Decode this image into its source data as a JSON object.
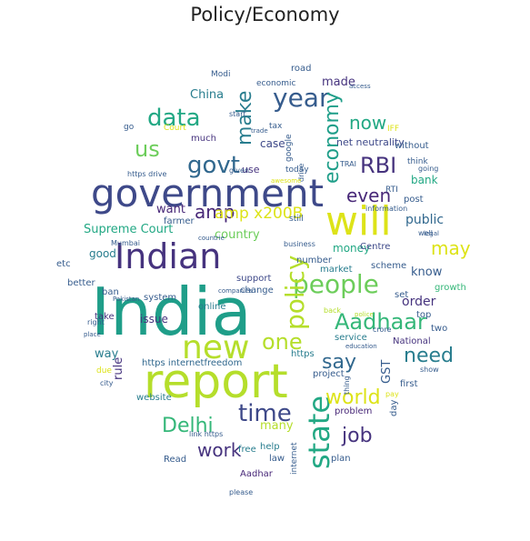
{
  "title": "Policy/Economy",
  "palette": {
    "dark_purple": "#482878",
    "purple": "#46337e",
    "indigo": "#3e4989",
    "slate_blue": "#365c8d",
    "steel_blue": "#31688e",
    "teal_blue": "#287d8e",
    "teal": "#1f9e89",
    "sea_green": "#22a884",
    "green": "#35b779",
    "light_green": "#6ccd5a",
    "yellow_green": "#b5de2b",
    "yellow": "#dde318"
  },
  "words": [
    {
      "text": "India",
      "color": "#1f9e89"
    },
    {
      "text": "report",
      "color": "#b5de2b"
    },
    {
      "text": "government",
      "color": "#3e4989"
    },
    {
      "text": "Indian",
      "color": "#46337e"
    },
    {
      "text": "will",
      "color": "#dde318"
    },
    {
      "text": "people",
      "color": "#6ccd5a"
    },
    {
      "text": "new",
      "color": "#b5de2b"
    },
    {
      "text": "state",
      "color": "#22a884"
    },
    {
      "text": "policy",
      "color": "#b5de2b"
    },
    {
      "text": "year",
      "color": "#365c8d"
    },
    {
      "text": "govt",
      "color": "#31688e"
    },
    {
      "text": "data",
      "color": "#22a884"
    },
    {
      "text": "time",
      "color": "#3e4989"
    },
    {
      "text": "Delhi",
      "color": "#35b779"
    },
    {
      "text": "Aadhaar",
      "color": "#35b779"
    },
    {
      "text": "say",
      "color": "#31688e"
    },
    {
      "text": "need",
      "color": "#287d8e"
    },
    {
      "text": "world",
      "color": "#dde318"
    },
    {
      "text": "job",
      "color": "#46337e"
    },
    {
      "text": "RBI",
      "color": "#46337e"
    },
    {
      "text": "us",
      "color": "#6ccd5a"
    },
    {
      "text": "make",
      "color": "#287d8e"
    },
    {
      "text": "economy",
      "color": "#1f9e89"
    },
    {
      "text": "now",
      "color": "#22a884"
    },
    {
      "text": "even",
      "color": "#482878"
    },
    {
      "text": "may",
      "color": "#dde318"
    },
    {
      "text": "one",
      "color": "#b5de2b"
    },
    {
      "text": "work",
      "color": "#46337e"
    },
    {
      "text": "amp",
      "color": "#482878"
    },
    {
      "text": "amp x200B",
      "color": "#dde318"
    },
    {
      "text": "Supreme Court",
      "color": "#22a884"
    },
    {
      "text": "country",
      "color": "#6ccd5a"
    },
    {
      "text": "public",
      "color": "#31688e"
    },
    {
      "text": "want",
      "color": "#482878"
    },
    {
      "text": "made",
      "color": "#46337e"
    },
    {
      "text": "China",
      "color": "#287d8e"
    },
    {
      "text": "case",
      "color": "#3e4989"
    },
    {
      "text": "bank",
      "color": "#22a884"
    },
    {
      "text": "know",
      "color": "#365c8d"
    },
    {
      "text": "order",
      "color": "#46337e"
    },
    {
      "text": "money",
      "color": "#22a884"
    },
    {
      "text": "good",
      "color": "#287d8e"
    },
    {
      "text": "way",
      "color": "#287d8e"
    },
    {
      "text": "issue",
      "color": "#46337e"
    },
    {
      "text": "rule",
      "color": "#46337e"
    },
    {
      "text": "many",
      "color": "#b5de2b"
    },
    {
      "text": "GST",
      "color": "#365c8d"
    },
    {
      "text": "net neutrality",
      "color": "#3e4989"
    },
    {
      "text": "use",
      "color": "#46337e"
    },
    {
      "text": "much",
      "color": "#46337e"
    },
    {
      "text": "take",
      "color": "#46337e"
    },
    {
      "text": "ban",
      "color": "#365c8d"
    },
    {
      "text": "https internetfreedom",
      "color": "#31688e"
    },
    {
      "text": "problem",
      "color": "#482878"
    },
    {
      "text": "Centre",
      "color": "#3e4989"
    },
    {
      "text": "support",
      "color": "#3e4989"
    },
    {
      "text": "online",
      "color": "#287d8e"
    },
    {
      "text": "system",
      "color": "#365c8d"
    },
    {
      "text": "market",
      "color": "#287d8e"
    },
    {
      "text": "scheme",
      "color": "#365c8d"
    },
    {
      "text": "number",
      "color": "#365c8d"
    },
    {
      "text": "change",
      "color": "#365c8d"
    },
    {
      "text": "set",
      "color": "#365c8d"
    },
    {
      "text": "top",
      "color": "#365c8d"
    },
    {
      "text": "growth",
      "color": "#35b779"
    },
    {
      "text": "two",
      "color": "#365c8d"
    },
    {
      "text": "https",
      "color": "#287d8e"
    },
    {
      "text": "project",
      "color": "#365c8d"
    },
    {
      "text": "service",
      "color": "#287d8e"
    },
    {
      "text": "day",
      "color": "#365c8d"
    },
    {
      "text": "first",
      "color": "#365c8d"
    },
    {
      "text": "National",
      "color": "#46337e"
    },
    {
      "text": "website",
      "color": "#287d8e"
    },
    {
      "text": "free",
      "color": "#287d8e"
    },
    {
      "text": "Read",
      "color": "#365c8d"
    },
    {
      "text": "help",
      "color": "#287d8e"
    },
    {
      "text": "law",
      "color": "#365c8d"
    },
    {
      "text": "plan",
      "color": "#365c8d"
    },
    {
      "text": "Aadhar",
      "color": "#482878"
    },
    {
      "text": "internet",
      "color": "#365c8d"
    },
    {
      "text": "farmer",
      "color": "#365c8d"
    },
    {
      "text": "better",
      "color": "#365c8d"
    },
    {
      "text": "etc",
      "color": "#365c8d"
    },
    {
      "text": "post",
      "color": "#365c8d"
    },
    {
      "text": "without",
      "color": "#365c8d"
    },
    {
      "text": "think",
      "color": "#365c8d"
    },
    {
      "text": "going",
      "color": "#365c8d"
    },
    {
      "text": "well",
      "color": "#365c8d"
    },
    {
      "text": "RTI",
      "color": "#365c8d"
    },
    {
      "text": "information",
      "color": "#365c8d"
    },
    {
      "text": "Modi",
      "color": "#365c8d"
    },
    {
      "text": "road",
      "color": "#365c8d"
    },
    {
      "text": "economic",
      "color": "#365c8d"
    },
    {
      "text": "tax",
      "color": "#365c8d"
    },
    {
      "text": "google",
      "color": "#365c8d"
    },
    {
      "text": "drive",
      "color": "#365c8d"
    },
    {
      "text": "today",
      "color": "#365c8d"
    },
    {
      "text": "still",
      "color": "#365c8d"
    },
    {
      "text": "business",
      "color": "#365c8d"
    },
    {
      "text": "Court",
      "color": "#dde318"
    },
    {
      "text": "IFF",
      "color": "#dde318"
    },
    {
      "text": "go",
      "color": "#365c8d"
    },
    {
      "text": "https drive",
      "color": "#365c8d"
    },
    {
      "text": "Mumbai",
      "color": "#365c8d"
    },
    {
      "text": "due",
      "color": "#dde318"
    },
    {
      "text": "right",
      "color": "#365c8d"
    },
    {
      "text": "city",
      "color": "#365c8d"
    },
    {
      "text": "place",
      "color": "#365c8d"
    },
    {
      "text": "Pakistan",
      "color": "#365c8d"
    },
    {
      "text": "given",
      "color": "#365c8d"
    },
    {
      "text": "TRAI",
      "color": "#365c8d"
    },
    {
      "text": "trade",
      "color": "#365c8d"
    },
    {
      "text": "start",
      "color": "#365c8d"
    },
    {
      "text": "education",
      "color": "#365c8d"
    },
    {
      "text": "show",
      "color": "#365c8d"
    },
    {
      "text": "pay",
      "color": "#dde318"
    },
    {
      "text": "thing",
      "color": "#365c8d"
    },
    {
      "text": "link https",
      "color": "#365c8d"
    },
    {
      "text": "please",
      "color": "#365c8d"
    },
    {
      "text": "legal",
      "color": "#365c8d"
    },
    {
      "text": "crore",
      "color": "#365c8d"
    },
    {
      "text": "police",
      "color": "#b5de2b"
    },
    {
      "text": "back",
      "color": "#b5de2b"
    },
    {
      "text": "countrie",
      "color": "#365c8d"
    },
    {
      "text": "companies",
      "color": "#365c8d"
    },
    {
      "text": "awesome",
      "color": "#dde318"
    },
    {
      "text": "access",
      "color": "#365c8d"
    }
  ]
}
